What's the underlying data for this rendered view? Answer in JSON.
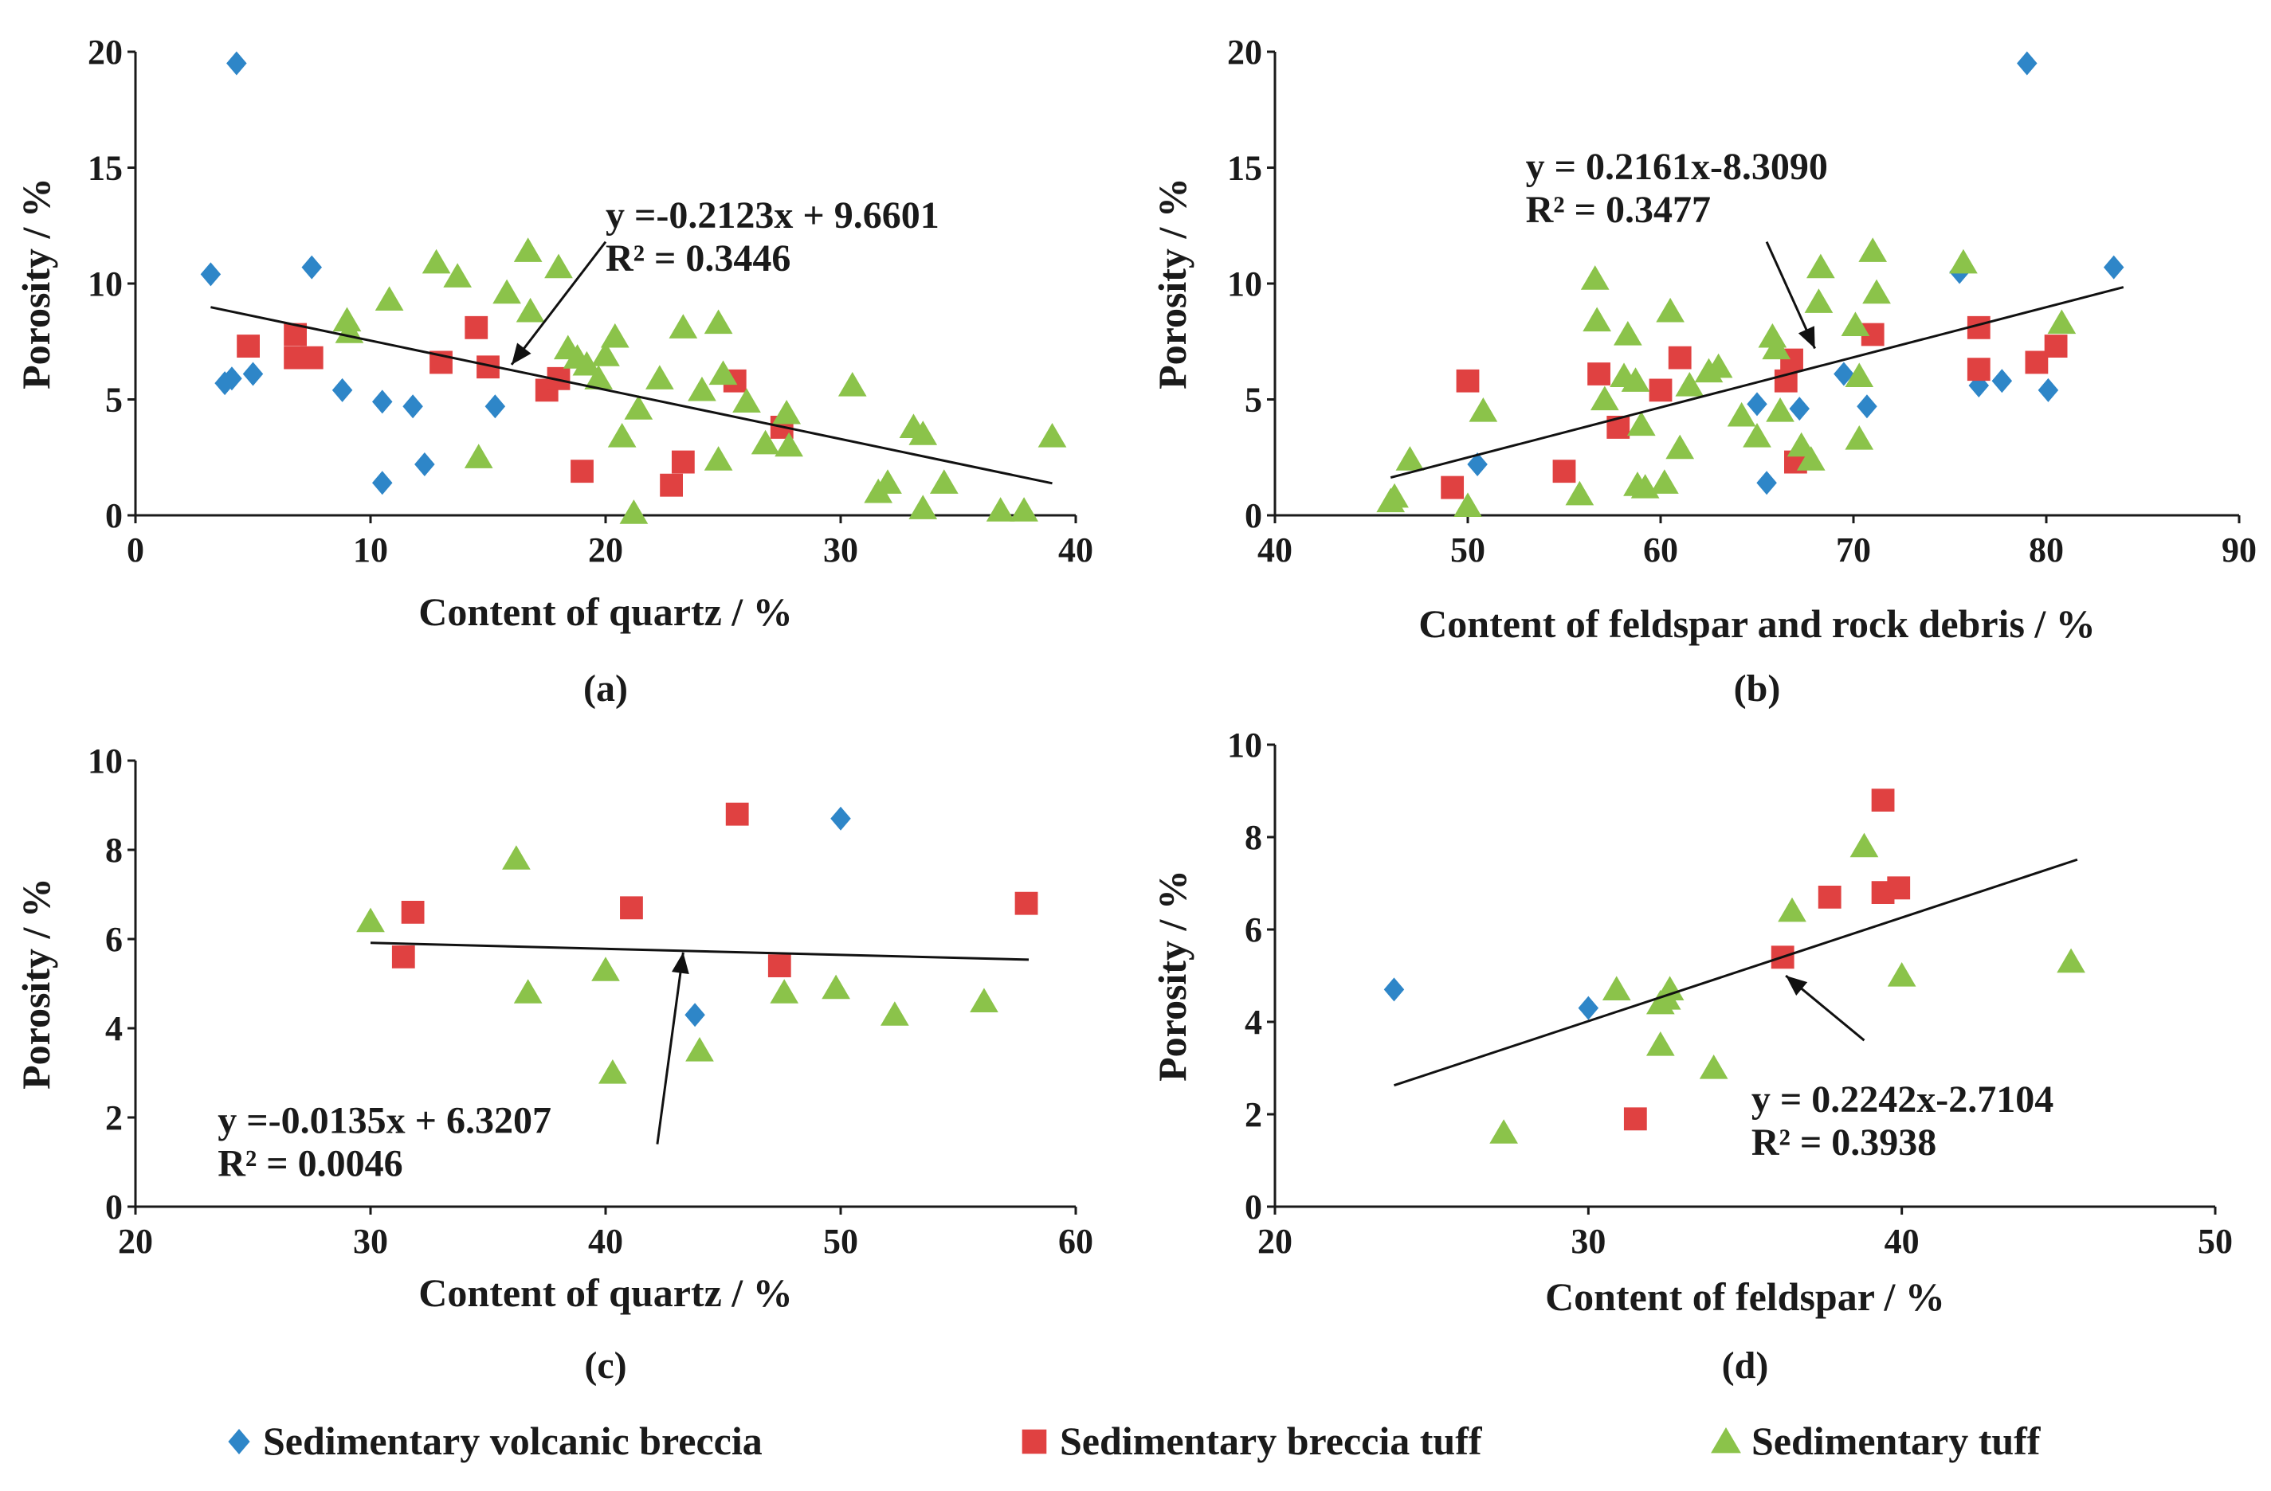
{
  "colors": {
    "Sedimentary volcanic breccia": "#2e86c8",
    "Sedimentary breccia tuff": "#e04141",
    "Sedimentary tuff": "#8bc34a",
    "axis": "#1a1a1a"
  },
  "legend": [
    {
      "name": "Sedimentary volcanic breccia",
      "marker": "diamond"
    },
    {
      "name": "Sedimentary breccia tuff",
      "marker": "square"
    },
    {
      "name": "Sedimentary tuff",
      "marker": "triangle"
    }
  ],
  "chart_data": [
    {
      "id": "a",
      "type": "scatter",
      "panel_label": "(a)",
      "xlabel": "Content of quartz / %",
      "ylabel": "Porosity / %",
      "xlim": [
        0,
        40
      ],
      "ylim": [
        0,
        20
      ],
      "xticks": [
        0,
        10,
        20,
        30,
        40
      ],
      "yticks": [
        0,
        5,
        10,
        15,
        20
      ],
      "equation": "y =-0.2123x + 9.6601",
      "r2": "R² = 0.3446",
      "trendline": {
        "slope": -0.2123,
        "intercept": 9.6601,
        "x_range": [
          3.2,
          39
        ]
      },
      "arrow": {
        "from": [
          20,
          11.8
        ],
        "to": [
          16,
          6.5
        ]
      },
      "equation_anchor": [
        20,
        12.4
      ],
      "series": [
        {
          "name": "Sedimentary volcanic breccia",
          "points": [
            [
              4.3,
              19.5
            ],
            [
              3.2,
              10.4
            ],
            [
              7.5,
              10.7
            ],
            [
              3.8,
              5.7
            ],
            [
              4.1,
              5.9
            ],
            [
              5.0,
              6.1
            ],
            [
              8.8,
              5.4
            ],
            [
              10.5,
              4.9
            ],
            [
              11.8,
              4.7
            ],
            [
              15.3,
              4.7
            ],
            [
              12.3,
              2.2
            ],
            [
              10.5,
              1.4
            ]
          ]
        },
        {
          "name": "Sedimentary breccia tuff",
          "points": [
            [
              4.8,
              7.3
            ],
            [
              6.8,
              7.8
            ],
            [
              6.8,
              6.8
            ],
            [
              7.5,
              6.8
            ],
            [
              13.0,
              6.6
            ],
            [
              14.5,
              8.1
            ],
            [
              15.0,
              6.4
            ],
            [
              17.5,
              5.4
            ],
            [
              18.0,
              5.9
            ],
            [
              19.0,
              1.9
            ],
            [
              23.3,
              2.3
            ],
            [
              22.8,
              1.3
            ],
            [
              25.5,
              5.8
            ],
            [
              27.5,
              3.8
            ]
          ]
        },
        {
          "name": "Sedimentary tuff",
          "points": [
            [
              9.0,
              8.4
            ],
            [
              9.1,
              7.9
            ],
            [
              10.8,
              9.3
            ],
            [
              12.8,
              10.9
            ],
            [
              13.7,
              10.3
            ],
            [
              15.8,
              9.6
            ],
            [
              16.7,
              11.4
            ],
            [
              16.8,
              8.8
            ],
            [
              18.0,
              10.7
            ],
            [
              18.4,
              7.2
            ],
            [
              18.8,
              6.8
            ],
            [
              19.2,
              6.5
            ],
            [
              19.7,
              5.9
            ],
            [
              20.0,
              6.9
            ],
            [
              20.4,
              7.7
            ],
            [
              20.7,
              3.4
            ],
            [
              21.4,
              4.6
            ],
            [
              21.2,
              0.1
            ],
            [
              22.3,
              5.9
            ],
            [
              23.3,
              8.1
            ],
            [
              24.1,
              5.4
            ],
            [
              24.8,
              8.3
            ],
            [
              25.0,
              6.1
            ],
            [
              24.8,
              2.4
            ],
            [
              26.0,
              4.9
            ],
            [
              26.8,
              3.1
            ],
            [
              27.7,
              4.4
            ],
            [
              27.8,
              3.0
            ],
            [
              30.5,
              5.6
            ],
            [
              31.6,
              1.0
            ],
            [
              32.0,
              1.4
            ],
            [
              33.1,
              3.8
            ],
            [
              33.5,
              3.5
            ],
            [
              34.4,
              1.4
            ],
            [
              33.5,
              0.3
            ],
            [
              36.8,
              0.2
            ],
            [
              37.8,
              0.2
            ],
            [
              39.0,
              3.4
            ],
            [
              14.6,
              2.5
            ]
          ]
        }
      ]
    },
    {
      "id": "b",
      "type": "scatter",
      "panel_label": "(b)",
      "xlabel": "Content of feldspar and rock debris / %",
      "ylabel": "Porosity / %",
      "xlim": [
        40,
        90
      ],
      "ylim": [
        0,
        20
      ],
      "xticks": [
        40,
        50,
        60,
        70,
        80,
        90
      ],
      "yticks": [
        0,
        5,
        10,
        15,
        20
      ],
      "equation": "y = 0.2161x-8.3090",
      "r2": "R² = 0.3477",
      "trendline": {
        "slope": 0.2161,
        "intercept": -8.309,
        "x_range": [
          46,
          84
        ]
      },
      "arrow": {
        "from": [
          65.5,
          11.8
        ],
        "to": [
          68,
          7.2
        ]
      },
      "equation_anchor": [
        53,
        14.5
      ],
      "series": [
        {
          "name": "Sedimentary volcanic breccia",
          "points": [
            [
              79,
              19.5
            ],
            [
              75.5,
              10.5
            ],
            [
              83.5,
              10.7
            ],
            [
              69.5,
              6.1
            ],
            [
              65,
              4.8
            ],
            [
              67.2,
              4.6
            ],
            [
              70.7,
              4.7
            ],
            [
              76.5,
              5.6
            ],
            [
              77.7,
              5.8
            ],
            [
              80.1,
              5.4
            ],
            [
              50.5,
              2.2
            ],
            [
              65.5,
              1.4
            ]
          ]
        },
        {
          "name": "Sedimentary breccia tuff",
          "points": [
            [
              50,
              5.8
            ],
            [
              49.2,
              1.2
            ],
            [
              55,
              1.9
            ],
            [
              56.8,
              6.1
            ],
            [
              57.8,
              3.8
            ],
            [
              60,
              5.4
            ],
            [
              61,
              6.8
            ],
            [
              66.5,
              5.8
            ],
            [
              66.8,
              6.7
            ],
            [
              67,
              2.3
            ],
            [
              71,
              7.8
            ],
            [
              76.5,
              8.1
            ],
            [
              76.5,
              6.3
            ],
            [
              79.5,
              6.6
            ],
            [
              80.5,
              7.3
            ]
          ]
        },
        {
          "name": "Sedimentary tuff",
          "points": [
            [
              46,
              0.6
            ],
            [
              46.2,
              0.8
            ],
            [
              47,
              2.4
            ],
            [
              50,
              0.4
            ],
            [
              50.8,
              4.5
            ],
            [
              55.8,
              0.9
            ],
            [
              56.6,
              10.2
            ],
            [
              56.7,
              8.4
            ],
            [
              57.1,
              5.0
            ],
            [
              58.3,
              7.8
            ],
            [
              58.1,
              6.0
            ],
            [
              58.7,
              5.8
            ],
            [
              59,
              3.9
            ],
            [
              58.8,
              1.3
            ],
            [
              59.2,
              1.2
            ],
            [
              60.2,
              1.4
            ],
            [
              60.5,
              8.8
            ],
            [
              61,
              2.9
            ],
            [
              61.5,
              5.6
            ],
            [
              62.5,
              6.2
            ],
            [
              63,
              6.4
            ],
            [
              64.2,
              4.3
            ],
            [
              65,
              3.4
            ],
            [
              65.8,
              7.7
            ],
            [
              66,
              7.2
            ],
            [
              66.2,
              4.5
            ],
            [
              67.3,
              3.0
            ],
            [
              67.8,
              2.4
            ],
            [
              68.2,
              9.2
            ],
            [
              68.3,
              10.7
            ],
            [
              70.1,
              8.2
            ],
            [
              70.3,
              6.0
            ],
            [
              70.3,
              3.3
            ],
            [
              71.0,
              11.4
            ],
            [
              71.2,
              9.6
            ],
            [
              75.7,
              10.9
            ],
            [
              80.8,
              8.3
            ]
          ]
        }
      ]
    },
    {
      "id": "c",
      "type": "scatter",
      "panel_label": "(c)",
      "xlabel": "Content of quartz / %",
      "ylabel": "Porosity / %",
      "xlim": [
        20,
        60
      ],
      "ylim": [
        0,
        10
      ],
      "xticks": [
        20,
        30,
        40,
        50,
        60
      ],
      "yticks": [
        0,
        2,
        4,
        6,
        8,
        10
      ],
      "equation": "y =-0.0135x + 6.3207",
      "r2": "R² = 0.0046",
      "trendline": {
        "slope": -0.0135,
        "intercept": 6.3207,
        "x_range": [
          30,
          58
        ]
      },
      "arrow": {
        "from": [
          42.2,
          1.4
        ],
        "to": [
          43.3,
          5.7
        ]
      },
      "equation_anchor": [
        23.5,
        1.65
      ],
      "series": [
        {
          "name": "Sedimentary volcanic breccia",
          "points": [
            [
              50,
              8.7
            ],
            [
              43.8,
              4.3
            ]
          ]
        },
        {
          "name": "Sedimentary breccia tuff",
          "points": [
            [
              31.8,
              6.6
            ],
            [
              31.4,
              5.6
            ],
            [
              41.1,
              6.7
            ],
            [
              45.6,
              8.8
            ],
            [
              47.4,
              5.4
            ],
            [
              57.9,
              6.8
            ]
          ]
        },
        {
          "name": "Sedimentary tuff",
          "points": [
            [
              30,
              6.4
            ],
            [
              36.2,
              7.8
            ],
            [
              36.7,
              4.8
            ],
            [
              40,
              5.3
            ],
            [
              40.3,
              3.0
            ],
            [
              44,
              3.5
            ],
            [
              47.6,
              4.8
            ],
            [
              49.8,
              4.9
            ],
            [
              52.3,
              4.3
            ],
            [
              56.1,
              4.6
            ]
          ]
        }
      ]
    },
    {
      "id": "d",
      "type": "scatter",
      "panel_label": "(d)",
      "xlabel": "Content of feldspar / %",
      "ylabel": "Porosity / %",
      "xlim": [
        20,
        50
      ],
      "ylim": [
        0,
        10
      ],
      "xticks": [
        20,
        30,
        40,
        50
      ],
      "yticks": [
        0,
        2,
        4,
        6,
        8,
        10
      ],
      "equation": "y = 0.2242x-2.7104",
      "r2": "R² = 0.3938",
      "trendline": {
        "slope": 0.2242,
        "intercept": -2.7104,
        "x_range": [
          23.8,
          45.6
        ]
      },
      "arrow": {
        "from": [
          38.8,
          3.6
        ],
        "to": [
          36.3,
          5.0
        ]
      },
      "equation_anchor": [
        35.2,
        2.05
      ],
      "series": [
        {
          "name": "Sedimentary volcanic breccia",
          "points": [
            [
              23.8,
              4.7
            ],
            [
              30,
              4.3
            ]
          ]
        },
        {
          "name": "Sedimentary breccia tuff",
          "points": [
            [
              31.5,
              1.9
            ],
            [
              36.2,
              5.4
            ],
            [
              37.7,
              6.7
            ],
            [
              39.4,
              6.8
            ],
            [
              39.9,
              6.9
            ],
            [
              39.4,
              8.8
            ]
          ]
        },
        {
          "name": "Sedimentary tuff",
          "points": [
            [
              27.3,
              1.6
            ],
            [
              30.9,
              4.7
            ],
            [
              32.3,
              4.4
            ],
            [
              32.5,
              4.5
            ],
            [
              32.6,
              4.7
            ],
            [
              32.3,
              3.5
            ],
            [
              34.0,
              3.0
            ],
            [
              36.5,
              6.4
            ],
            [
              38.8,
              7.8
            ],
            [
              40.0,
              5.0
            ],
            [
              45.4,
              5.3
            ]
          ]
        }
      ]
    }
  ]
}
